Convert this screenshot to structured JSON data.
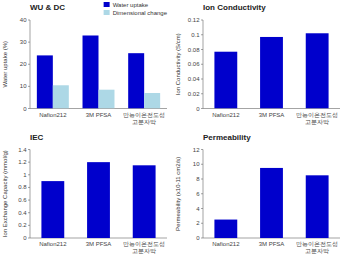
{
  "chart_data": [
    {
      "type": "bar",
      "title": "WU & DC",
      "y_label": "Water uptake (%)",
      "categories": [
        "Nafion212",
        "3M PFSA",
        "만능이온전도성\n고분자막"
      ],
      "series": [
        {
          "name": "Water uptake",
          "color": "#0000CC",
          "values": [
            24,
            33,
            25
          ]
        },
        {
          "name": "Dimensional change",
          "color": "#ADD8E6",
          "values": [
            10.5,
            8.5,
            7.0
          ]
        }
      ],
      "ylim": [
        0,
        40
      ],
      "yticks": [
        0,
        10,
        20,
        30,
        40
      ],
      "legend": "upper right"
    },
    {
      "type": "bar",
      "title": "Ion Conductivity",
      "y_label": "Ion Conductivity (S/cm)",
      "categories": [
        "Nafion212",
        "3M PFSA",
        "만능이온전도성\n고분자막"
      ],
      "values": [
        0.077,
        0.097,
        0.102
      ],
      "color": "#0000CC",
      "ylim": [
        0,
        0.12
      ],
      "yticks": [
        0,
        0.02,
        0.04,
        0.06,
        0.08,
        0.1,
        0.12
      ]
    },
    {
      "type": "bar",
      "title": "IEC",
      "y_label": "Ion Exchange Capacity (mmol/g)",
      "categories": [
        "Nafion212",
        "3M PFSA",
        "만능이온전도성\n고분자막"
      ],
      "values": [
        0.9,
        1.2,
        1.15
      ],
      "color": "#0000CC",
      "ylim": [
        0,
        1.4
      ],
      "yticks": [
        0,
        0.2,
        0.4,
        0.6,
        0.8,
        1,
        1.2,
        1.4
      ]
    },
    {
      "type": "bar",
      "title": "Permeability",
      "y_label": "Permeability (x10-11 cm2/s)",
      "categories": [
        "Nafion212",
        "3M PFSA",
        "만능이온전도성\n고분자막"
      ],
      "values": [
        2.5,
        9.5,
        8.5
      ],
      "color": "#0000CC",
      "ylim": [
        0,
        12
      ],
      "yticks": [
        0,
        2,
        4,
        6,
        8,
        10,
        12
      ]
    }
  ]
}
